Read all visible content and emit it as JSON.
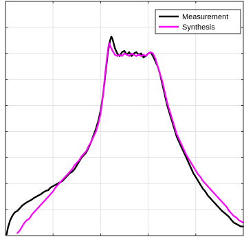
{
  "chart_data": {
    "type": "line",
    "title": "",
    "xlabel": "",
    "ylabel": "",
    "xlim": [
      0,
      100
    ],
    "ylim": [
      0,
      9
    ],
    "xticks": [
      0,
      20,
      40,
      60,
      80,
      100
    ],
    "yticks": [
      0,
      1,
      2,
      3,
      4,
      5,
      6,
      7,
      8,
      9
    ],
    "grid": true,
    "legend_position": "top-right",
    "series": [
      {
        "name": "Measurement",
        "color": "#000000",
        "points": [
          [
            0.5,
            0.05
          ],
          [
            1,
            0.3
          ],
          [
            2,
            0.6
          ],
          [
            3,
            0.78
          ],
          [
            4,
            0.9
          ],
          [
            5,
            0.95
          ],
          [
            6,
            1.05
          ],
          [
            7,
            1.15
          ],
          [
            8,
            1.22
          ],
          [
            9,
            1.28
          ],
          [
            10,
            1.33
          ],
          [
            11,
            1.38
          ],
          [
            12,
            1.45
          ],
          [
            13,
            1.5
          ],
          [
            14,
            1.55
          ],
          [
            15,
            1.6
          ],
          [
            16,
            1.67
          ],
          [
            17,
            1.72
          ],
          [
            18,
            1.75
          ],
          [
            19,
            1.85
          ],
          [
            20,
            1.9
          ],
          [
            21,
            1.95
          ],
          [
            22,
            2.0
          ],
          [
            23,
            2.05
          ],
          [
            24,
            2.1
          ],
          [
            25,
            2.2
          ],
          [
            26,
            2.3
          ],
          [
            27,
            2.4
          ],
          [
            28,
            2.45
          ],
          [
            29,
            2.55
          ],
          [
            30,
            2.7
          ],
          [
            31,
            2.85
          ],
          [
            32,
            3.0
          ],
          [
            33,
            3.1
          ],
          [
            34,
            3.2
          ],
          [
            35,
            3.4
          ],
          [
            36,
            3.6
          ],
          [
            37,
            3.85
          ],
          [
            38,
            4.1
          ],
          [
            39,
            4.4
          ],
          [
            40,
            4.8
          ],
          [
            41,
            5.4
          ],
          [
            42,
            6.2
          ],
          [
            43,
            7.0
          ],
          [
            44,
            7.5
          ],
          [
            44.5,
            7.65
          ],
          [
            45,
            7.55
          ],
          [
            46,
            7.2
          ],
          [
            47,
            7.0
          ],
          [
            48,
            6.9
          ],
          [
            49,
            7.05
          ],
          [
            50,
            7.1
          ],
          [
            51,
            6.95
          ],
          [
            52,
            7.05
          ],
          [
            53,
            6.9
          ],
          [
            54,
            7.0
          ],
          [
            55,
            7.05
          ],
          [
            56,
            6.95
          ],
          [
            57,
            7.0
          ],
          [
            58,
            6.85
          ],
          [
            59,
            6.9
          ],
          [
            60,
            7.0
          ],
          [
            61,
            7.05
          ],
          [
            62,
            6.9
          ],
          [
            63,
            6.7
          ],
          [
            64,
            6.5
          ],
          [
            65,
            6.2
          ],
          [
            66,
            5.8
          ],
          [
            67,
            5.4
          ],
          [
            68,
            5.0
          ],
          [
            69,
            4.7
          ],
          [
            70,
            4.4
          ],
          [
            71,
            4.1
          ],
          [
            72,
            3.8
          ],
          [
            73,
            3.6
          ],
          [
            74,
            3.4
          ],
          [
            75,
            3.2
          ],
          [
            76,
            3.0
          ],
          [
            77,
            2.8
          ],
          [
            78,
            2.6
          ],
          [
            79,
            2.4
          ],
          [
            80,
            2.25
          ],
          [
            81,
            2.1
          ],
          [
            82,
            1.95
          ],
          [
            83,
            1.8
          ],
          [
            84,
            1.7
          ],
          [
            85,
            1.55
          ],
          [
            86,
            1.45
          ],
          [
            87,
            1.35
          ],
          [
            88,
            1.25
          ],
          [
            89,
            1.15
          ],
          [
            90,
            1.05
          ],
          [
            91,
            0.95
          ],
          [
            92,
            0.88
          ],
          [
            93,
            0.8
          ],
          [
            94,
            0.72
          ],
          [
            95,
            0.6
          ],
          [
            96,
            0.5
          ],
          [
            97,
            0.45
          ],
          [
            98,
            0.4
          ],
          [
            99,
            0.35
          ],
          [
            100,
            0.35
          ]
        ]
      },
      {
        "name": "Synthesis",
        "color": "#ff00ff",
        "points": [
          [
            5,
            0.1
          ],
          [
            6,
            0.2
          ],
          [
            7,
            0.35
          ],
          [
            8,
            0.5
          ],
          [
            9,
            0.6
          ],
          [
            10,
            0.65
          ],
          [
            11,
            0.8
          ],
          [
            12,
            0.9
          ],
          [
            13,
            1.0
          ],
          [
            14,
            1.1
          ],
          [
            15,
            1.2
          ],
          [
            16,
            1.3
          ],
          [
            17,
            1.4
          ],
          [
            18,
            1.5
          ],
          [
            19,
            1.6
          ],
          [
            20,
            1.7
          ],
          [
            21,
            1.85
          ],
          [
            22,
            1.95
          ],
          [
            23,
            2.05
          ],
          [
            24,
            2.15
          ],
          [
            25,
            2.25
          ],
          [
            26,
            2.35
          ],
          [
            27,
            2.45
          ],
          [
            28,
            2.55
          ],
          [
            29,
            2.7
          ],
          [
            30,
            2.8
          ],
          [
            31,
            2.9
          ],
          [
            32,
            3.05
          ],
          [
            33,
            3.15
          ],
          [
            34,
            3.25
          ],
          [
            35,
            3.45
          ],
          [
            36,
            3.6
          ],
          [
            37,
            3.8
          ],
          [
            38,
            4.0
          ],
          [
            39,
            4.3
          ],
          [
            40,
            4.7
          ],
          [
            41,
            5.4
          ],
          [
            42,
            6.3
          ],
          [
            43,
            7.1
          ],
          [
            43.5,
            7.4
          ],
          [
            44,
            7.3
          ],
          [
            45,
            7.1
          ],
          [
            46,
            6.95
          ],
          [
            47,
            6.9
          ],
          [
            48,
            6.95
          ],
          [
            49,
            6.9
          ],
          [
            50,
            7.0
          ],
          [
            51,
            6.95
          ],
          [
            52,
            6.9
          ],
          [
            53,
            7.0
          ],
          [
            54,
            6.95
          ],
          [
            55,
            6.9
          ],
          [
            56,
            6.95
          ],
          [
            57,
            6.9
          ],
          [
            58,
            6.95
          ],
          [
            59,
            6.9
          ],
          [
            60,
            7.0
          ],
          [
            61,
            7.05
          ],
          [
            62,
            7.0
          ],
          [
            63,
            6.8
          ],
          [
            64,
            6.5
          ],
          [
            65,
            6.2
          ],
          [
            66,
            5.9
          ],
          [
            67,
            5.5
          ],
          [
            68,
            5.1
          ],
          [
            69,
            4.8
          ],
          [
            70,
            4.5
          ],
          [
            71,
            4.2
          ],
          [
            72,
            3.9
          ],
          [
            73,
            3.7
          ],
          [
            74,
            3.5
          ],
          [
            75,
            3.3
          ],
          [
            76,
            3.1
          ],
          [
            77,
            2.95
          ],
          [
            78,
            2.8
          ],
          [
            79,
            2.65
          ],
          [
            80,
            2.5
          ],
          [
            81,
            2.35
          ],
          [
            82,
            2.25
          ],
          [
            83,
            2.1
          ],
          [
            84,
            2.0
          ],
          [
            85,
            1.9
          ],
          [
            86,
            1.8
          ],
          [
            87,
            1.7
          ],
          [
            88,
            1.6
          ],
          [
            89,
            1.5
          ],
          [
            90,
            1.4
          ],
          [
            91,
            1.3
          ],
          [
            92,
            1.2
          ],
          [
            93,
            1.1
          ],
          [
            94,
            0.95
          ],
          [
            95,
            0.85
          ],
          [
            96,
            0.75
          ],
          [
            97,
            0.7
          ],
          [
            98,
            0.6
          ],
          [
            99,
            0.55
          ],
          [
            100,
            0.5
          ]
        ]
      }
    ]
  }
}
